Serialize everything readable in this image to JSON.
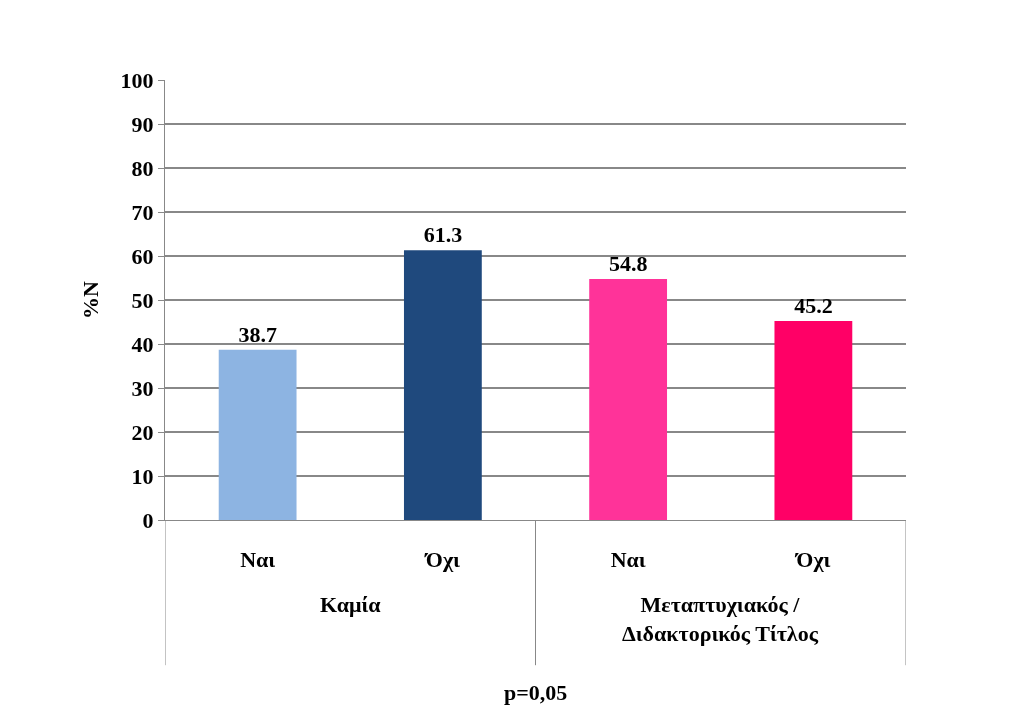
{
  "chart_data": {
    "type": "bar",
    "categories": [
      "Ναι",
      "Όχι",
      "Ναι",
      "Όχι"
    ],
    "values": [
      38.7,
      61.3,
      54.8,
      45.2
    ],
    "colors": [
      "#8db4e2",
      "#1f497d",
      "#ff3399",
      "#ff0066"
    ],
    "ylim": [
      0,
      100
    ],
    "yticks": [
      0,
      10,
      20,
      30,
      40,
      50,
      60,
      70,
      80,
      90,
      100
    ],
    "ylabel": "%N",
    "xlabel": "p=0,05",
    "annotations": [
      "Καμία",
      "Μεταπτυχιακός / Διδακτορικός Τίτλος"
    ],
    "data_labels": true,
    "grid": "y"
  }
}
